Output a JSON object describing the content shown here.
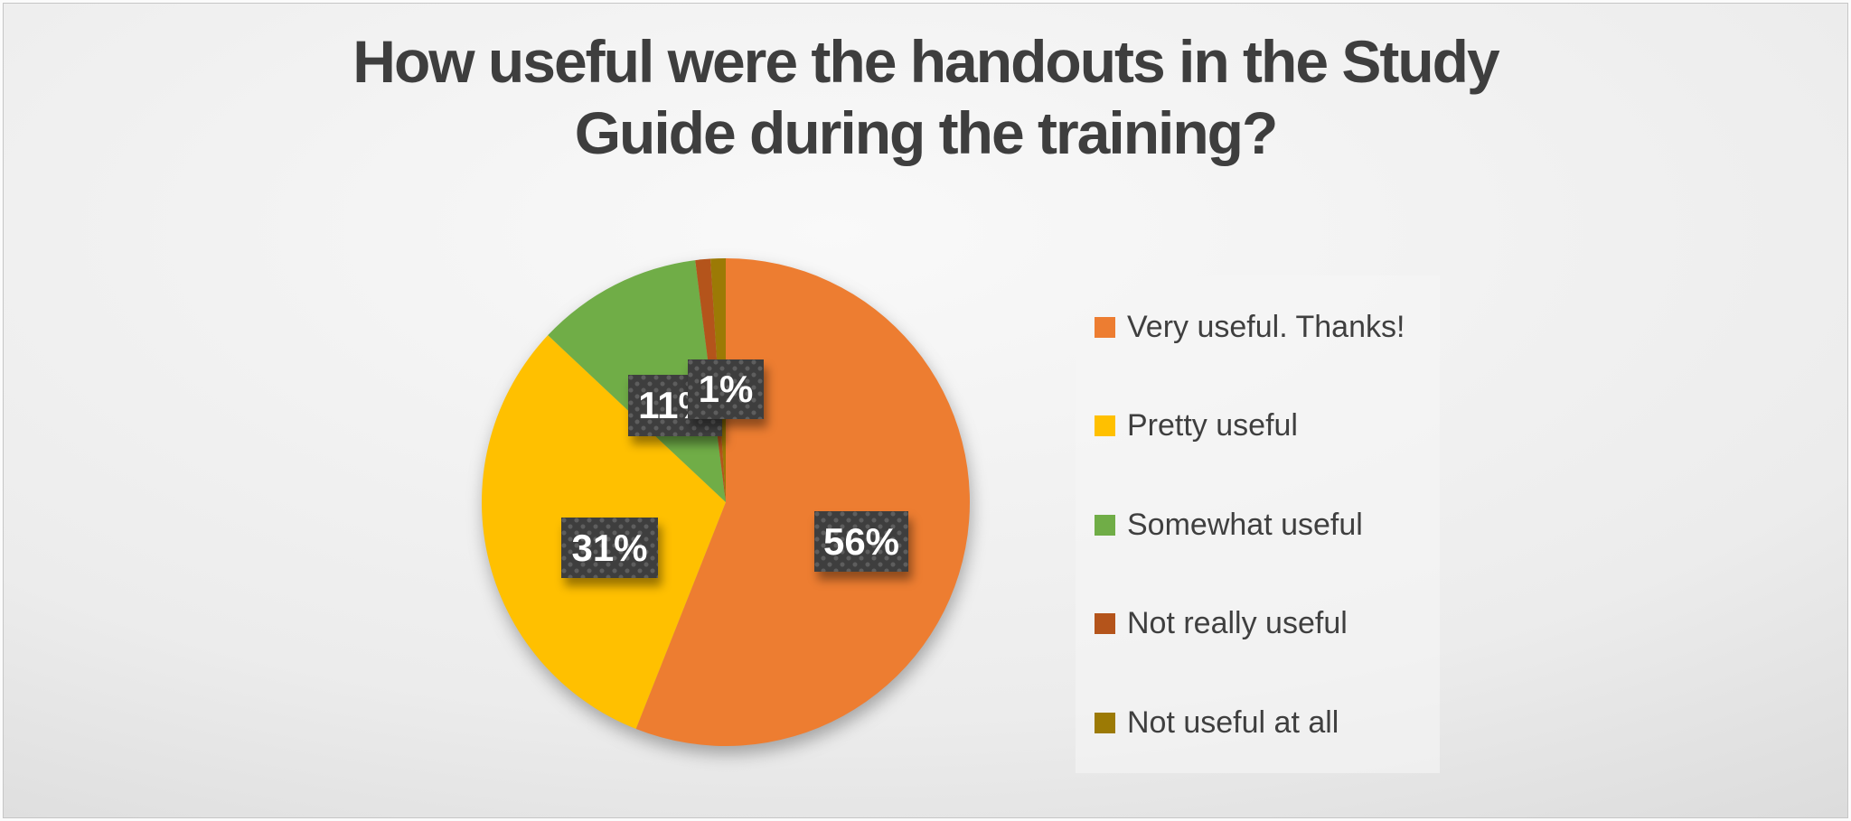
{
  "chart_data": {
    "type": "pie",
    "title": "How useful were the handouts in the Study Guide during the training?",
    "title_lines": [
      "How useful were the handouts in the Study",
      "Guide during the training?"
    ],
    "legend_position": "right",
    "start_angle_deg": 0,
    "direction": "clockwise",
    "total": 100,
    "series": [
      {
        "label": "Very useful. Thanks!",
        "value": 56,
        "pct_label": "56%",
        "color": "#ED7D31",
        "label_visible": true
      },
      {
        "label": "Pretty useful",
        "value": 31,
        "pct_label": "31%",
        "color": "#FFC000",
        "label_visible": true
      },
      {
        "label": "Somewhat useful",
        "value": 11,
        "pct_label": "11%",
        "color": "#70AD47",
        "label_visible": true
      },
      {
        "label": "Not really useful",
        "value": 1,
        "pct_label": "1%",
        "color": "#B4541B",
        "label_visible": false
      },
      {
        "label": "Not useful at all",
        "value": 1,
        "pct_label": "1%",
        "color": "#9C7A05",
        "label_visible": true
      }
    ],
    "data_label_style": {
      "background": "#3E3E3E",
      "dot_pattern": "#5E5E5E",
      "text_color": "#FFFFFF"
    }
  },
  "colors": {
    "page_background_light": "#F9F9F9",
    "page_background_dark": "#CFCFCF",
    "title_text": "#3E3E3E",
    "legend_text": "#3F3F3F",
    "legend_panel_background": "#F2F2F2"
  }
}
